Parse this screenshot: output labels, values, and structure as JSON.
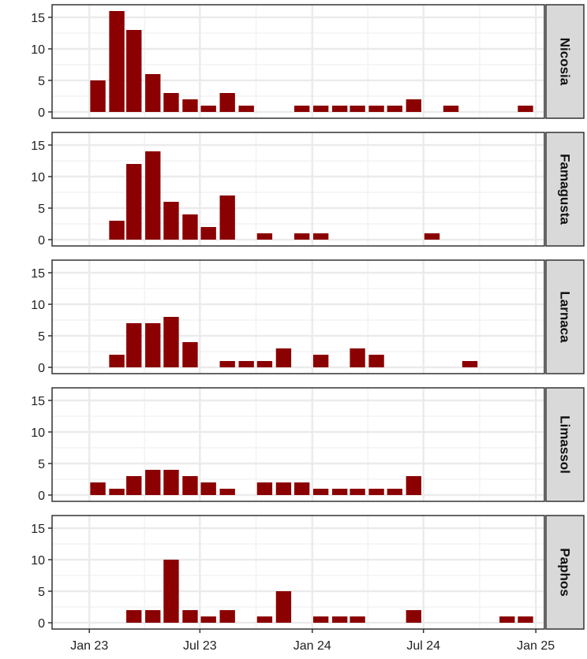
{
  "chart_data": {
    "type": "bar",
    "facet_layout": "vertical stack, facet strips on right",
    "x_axis": {
      "type": "date",
      "ticks": [
        "Jan 23",
        "Jul 23",
        "Jan 24",
        "Jul 24",
        "Jan 25"
      ],
      "tick_dates": [
        "2023-01-01",
        "2023-07-01",
        "2024-01-01",
        "2024-07-01",
        "2025-01-01"
      ],
      "range": [
        "2022-11-01",
        "2025-01-15"
      ]
    },
    "y_axis": {
      "ylim": [
        0,
        16.5
      ],
      "ticks": [
        0,
        5,
        10,
        15
      ]
    },
    "grid": true,
    "bar_width_days": 25,
    "colors": {
      "bar": "#8b0000",
      "strip_bg": "#d9d9d9",
      "grid": "#ebebeb",
      "panel_border": "#333333"
    },
    "x_months": [
      "2023-01",
      "2023-02",
      "2023-03",
      "2023-04",
      "2023-05",
      "2023-06",
      "2023-07",
      "2023-08",
      "2023-09",
      "2023-10",
      "2023-11",
      "2023-12",
      "2024-01",
      "2024-02",
      "2024-03",
      "2024-04",
      "2024-05",
      "2024-06",
      "2024-07",
      "2024-08",
      "2024-09",
      "2024-10",
      "2024-11",
      "2024-12"
    ],
    "panels": [
      {
        "name": "Nicosia",
        "values": [
          5,
          16,
          13,
          6,
          3,
          2,
          1,
          3,
          1,
          0,
          0,
          1,
          1,
          1,
          1,
          1,
          1,
          2,
          0,
          1,
          0,
          0,
          0,
          1
        ]
      },
      {
        "name": "Famagusta",
        "values": [
          0,
          3,
          12,
          14,
          6,
          4,
          2,
          7,
          0,
          1,
          0,
          1,
          1,
          0,
          0,
          0,
          0,
          0,
          1,
          0,
          0,
          0,
          0,
          0
        ]
      },
      {
        "name": "Larnaca",
        "values": [
          0,
          2,
          7,
          7,
          8,
          4,
          0,
          1,
          1,
          1,
          3,
          0,
          2,
          0,
          3,
          2,
          0,
          0,
          0,
          0,
          1,
          0,
          0,
          0
        ]
      },
      {
        "name": "Limassol",
        "values": [
          2,
          1,
          3,
          4,
          4,
          3,
          2,
          1,
          0,
          2,
          2,
          2,
          1,
          1,
          1,
          1,
          1,
          3,
          0,
          0,
          0,
          0,
          0,
          0
        ]
      },
      {
        "name": "Paphos",
        "values": [
          0,
          0,
          2,
          2,
          10,
          2,
          1,
          2,
          0,
          1,
          5,
          0,
          1,
          1,
          1,
          0,
          0,
          2,
          0,
          0,
          0,
          0,
          1,
          1
        ]
      }
    ]
  }
}
